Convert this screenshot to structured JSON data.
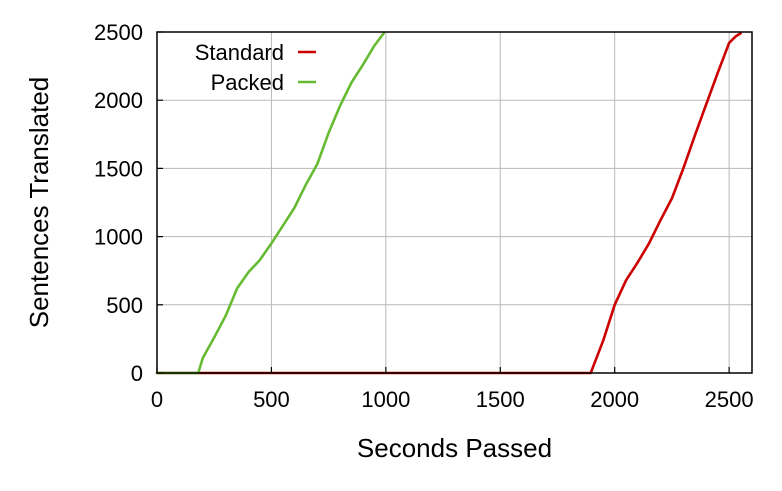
{
  "chart_data": {
    "type": "line",
    "title": "",
    "xlabel": "Seconds Passed",
    "ylabel": "Sentences Translated",
    "xlim": [
      0,
      2600
    ],
    "ylim": [
      0,
      2500
    ],
    "xticks": [
      0,
      500,
      1000,
      1500,
      2000,
      2500
    ],
    "yticks": [
      0,
      500,
      1000,
      1500,
      2000,
      2500
    ],
    "grid": true,
    "legend_position": "top-left",
    "series": [
      {
        "name": "Standard",
        "color": "#cc0000",
        "x": [
          0,
          1895,
          1950,
          2000,
          2050,
          2100,
          2150,
          2200,
          2250,
          2300,
          2350,
          2400,
          2450,
          2500,
          2530,
          2550
        ],
        "y": [
          0,
          0,
          240,
          500,
          680,
          810,
          950,
          1120,
          1280,
          1500,
          1740,
          1970,
          2200,
          2420,
          2470,
          2490
        ]
      },
      {
        "name": "Packed",
        "color": "#66bb33",
        "x": [
          0,
          180,
          200,
          250,
          300,
          350,
          400,
          450,
          500,
          550,
          600,
          650,
          700,
          750,
          800,
          850,
          900,
          950,
          990
        ],
        "y": [
          0,
          0,
          110,
          260,
          420,
          620,
          740,
          830,
          950,
          1080,
          1210,
          1380,
          1530,
          1760,
          1960,
          2130,
          2260,
          2400,
          2490
        ]
      }
    ]
  }
}
